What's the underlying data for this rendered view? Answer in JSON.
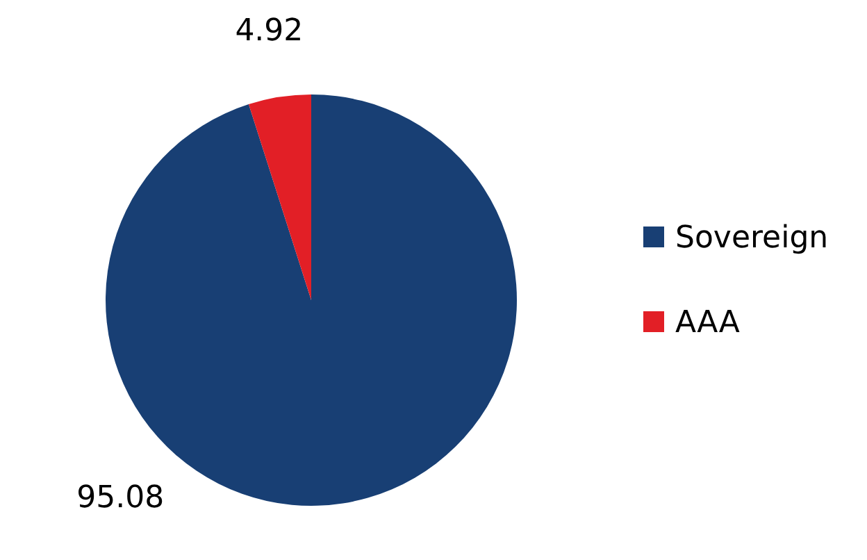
{
  "chart_data": {
    "type": "pie",
    "categories": [
      "Sovereign",
      "AAA"
    ],
    "values": [
      95.08,
      4.92
    ],
    "colors": [
      "#183f74",
      "#e21f26"
    ],
    "data_labels": true,
    "legend": "right"
  }
}
